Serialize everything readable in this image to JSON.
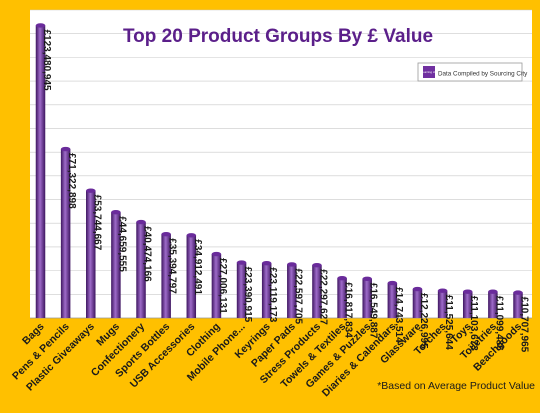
{
  "chart_data": {
    "type": "bar",
    "title": "Top 20 Product Groups By £ Value",
    "legend_text": "Data Compiled by Sourcing City",
    "legend_logo_text": "sourcing city",
    "footnote": "*Based on Average Product Value",
    "legend_position": "top-right",
    "grid": true,
    "ylim": [
      0,
      130000000
    ],
    "categories": [
      "Bags",
      "Pens & Pencils",
      "Plastic Giveaways",
      "Mugs",
      "Confectionery",
      "Sports Bottles",
      "USB Accessories",
      "Clothing",
      "Mobile Phone...",
      "Keyrings",
      "Paper Pads",
      "Stress Products",
      "Towels & Textiles",
      "Games & Puzzles",
      "Diaries & Calendars",
      "Glassware",
      "Torches",
      "Toys",
      "Toiletries",
      "Beachgoods"
    ],
    "values": [
      123480945,
      71322898,
      53744667,
      44659555,
      40474166,
      35394797,
      34912491,
      27006131,
      23390915,
      23119173,
      22597705,
      22297627,
      16817834,
      16549887,
      14743514,
      12226995,
      11525644,
      11103673,
      11099486,
      10707965
    ],
    "value_labels": [
      "£123,480,945",
      "£71,322,898",
      "£53,744,667",
      "£44,659,555",
      "£40,474,166",
      "£35,394,797",
      "£34,912,491",
      "£27,006,131",
      "£23,390,915",
      "£23,119,173",
      "£22,597,705",
      "£22,297,627",
      "£16,817,834",
      "£16,549,887",
      "£14,743,514",
      "£12,226,995",
      "£11,525,644",
      "£11,103,673",
      "£11,099,486",
      "£10,707,965"
    ],
    "colors": {
      "background": "#FFC000",
      "plot": "#FFFFFF",
      "bar": "#6A2B9B",
      "bar_dark": "#3E1560",
      "bar_light": "#9E6BC9",
      "title": "#5B1F8A",
      "grid": "#C9C9C9",
      "logo": "#7030A0"
    }
  }
}
